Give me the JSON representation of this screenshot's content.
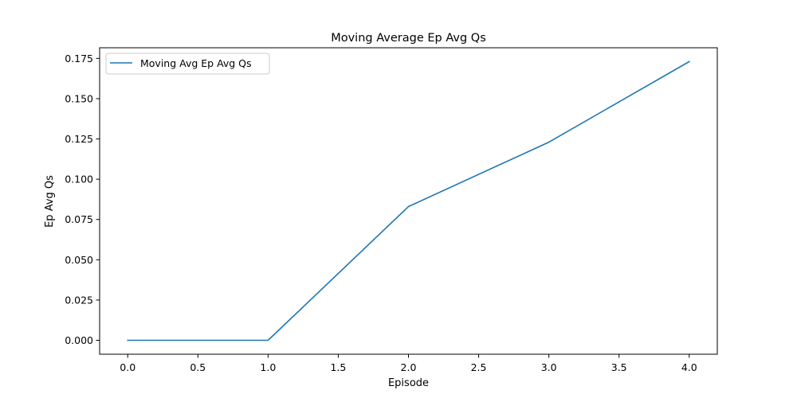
{
  "chart_data": {
    "type": "line",
    "title": "Moving Average Ep Avg Qs",
    "xlabel": "Episode",
    "ylabel": "Ep Avg Qs",
    "xlim": [
      -0.2,
      4.2
    ],
    "ylim": [
      -0.00865,
      0.1816
    ],
    "xticks": [
      0.0,
      0.5,
      1.0,
      1.5,
      2.0,
      2.5,
      3.0,
      3.5,
      4.0
    ],
    "xtick_labels": [
      "0.0",
      "0.5",
      "1.0",
      "1.5",
      "2.0",
      "2.5",
      "3.0",
      "3.5",
      "4.0"
    ],
    "yticks": [
      0.0,
      0.025,
      0.05,
      0.075,
      0.1,
      0.125,
      0.15,
      0.175
    ],
    "ytick_labels": [
      "0.000",
      "0.025",
      "0.050",
      "0.075",
      "0.100",
      "0.125",
      "0.150",
      "0.175"
    ],
    "grid": false,
    "legend_position": "top-left",
    "series": [
      {
        "name": "Moving Avg Ep Avg Qs",
        "color": "#1f77b4",
        "x": [
          0,
          1,
          2,
          3,
          4
        ],
        "y": [
          0.0,
          0.0,
          0.083,
          0.123,
          0.173
        ]
      }
    ]
  }
}
